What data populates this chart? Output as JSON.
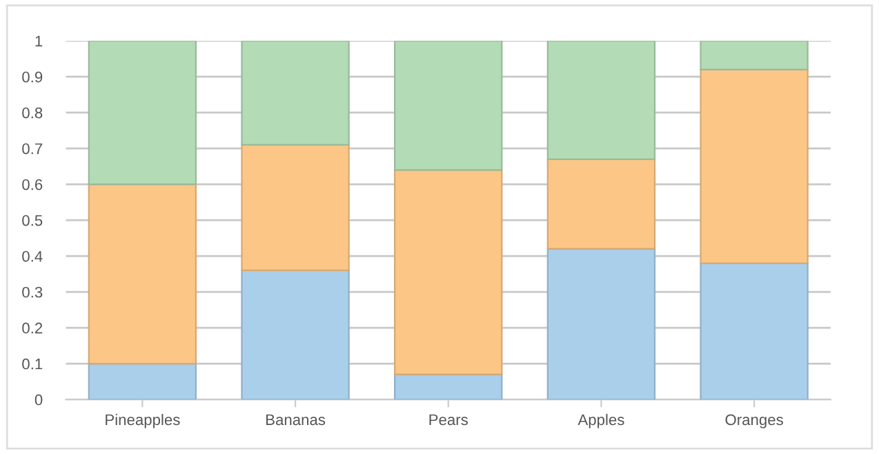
{
  "chart_data": {
    "type": "bar",
    "stacked": true,
    "categories": [
      "Pineapples",
      "Bananas",
      "Pears",
      "Apples",
      "Oranges"
    ],
    "series": [
      {
        "color": "#aacfeb",
        "values": [
          0.1,
          0.36,
          0.07,
          0.42,
          0.38
        ]
      },
      {
        "color": "#fcc687",
        "values": [
          0.5,
          0.35,
          0.57,
          0.25,
          0.54
        ]
      },
      {
        "color": "#b3dbb5",
        "values": [
          0.4,
          0.29,
          0.36,
          0.33,
          0.08
        ]
      }
    ],
    "ylim": [
      0,
      1
    ],
    "yticks": [
      0,
      0.1,
      0.2,
      0.3,
      0.4,
      0.5,
      0.6,
      0.7,
      0.8,
      0.9,
      1
    ],
    "grid": "y",
    "legend": false
  }
}
